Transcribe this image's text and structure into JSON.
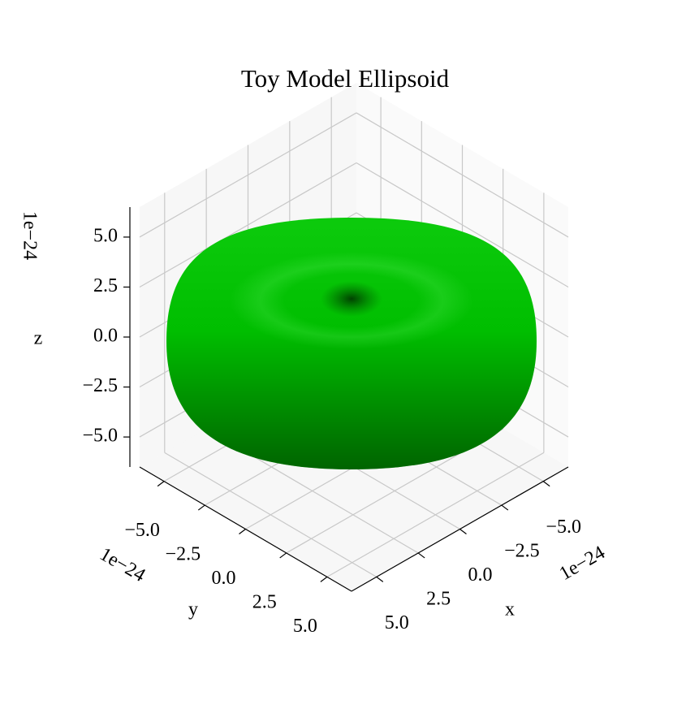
{
  "chart_data": {
    "type": "surface3d",
    "title": "Toy Model Ellipsoid",
    "xlabel": "x",
    "ylabel": "y",
    "zlabel": "z",
    "x_offset_label": "1e−24",
    "y_offset_label": "1e−24",
    "z_offset_label": "1e−24",
    "xlim": [
      -6.5,
      6.5
    ],
    "ylim": [
      -6.5,
      6.5
    ],
    "zlim": [
      -6.5,
      6.5
    ],
    "xticks": [
      {
        "value": -5,
        "label": "−5.0"
      },
      {
        "value": -2.5,
        "label": "−2.5"
      },
      {
        "value": 0,
        "label": "0.0"
      },
      2.5,
      {
        "value": 5,
        "label": "5.0"
      }
    ],
    "yticks": [
      {
        "value": -5,
        "label": "−5.0"
      },
      {
        "value": -2.5,
        "label": "−2.5"
      },
      {
        "value": 0,
        "label": "0.0"
      },
      2.5,
      {
        "value": 5,
        "label": "5.0"
      }
    ],
    "zticks": [
      {
        "value": -5,
        "label": "−5.0"
      },
      {
        "value": -2.5,
        "label": "−2.5"
      },
      {
        "value": 0,
        "label": "0.0"
      },
      2.5,
      {
        "value": 5,
        "label": "5.0"
      }
    ],
    "grid": true,
    "color": "#00c800"
  }
}
